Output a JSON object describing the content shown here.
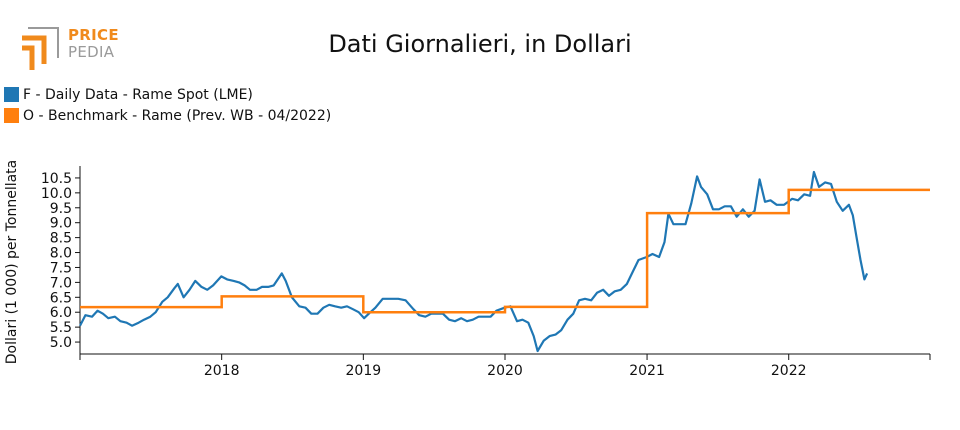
{
  "logo": {
    "word1": "PRICE",
    "word2": "PEDIA",
    "colors": {
      "orange": "#f08a1c",
      "gray": "#9a9a9a"
    }
  },
  "chart_data": {
    "type": "line",
    "title": "Dati Giornalieri, in Dollari",
    "ylabel": "Dollari (1 000) per Tonnellata",
    "xlabel": "",
    "ylim": [
      4.6,
      10.9
    ],
    "xlim": [
      "2017-01-01",
      "2022-12-31"
    ],
    "x_ticks": [
      "2018",
      "2019",
      "2020",
      "2021",
      "2022"
    ],
    "y_ticks": [
      "5.0",
      "5.5",
      "6.0",
      "6.5",
      "7.0",
      "7.5",
      "8.0",
      "8.5",
      "9.0",
      "9.5",
      "10.0",
      "10.5"
    ],
    "grid": false,
    "legend_position": "top-left",
    "series": [
      {
        "name": "F - Daily Data - Rame Spot (LME)",
        "color": "#1f77b4",
        "points": [
          [
            "2017-01-01",
            5.55
          ],
          [
            "2017-01-15",
            5.9
          ],
          [
            "2017-02-01",
            5.85
          ],
          [
            "2017-02-15",
            6.05
          ],
          [
            "2017-03-01",
            5.95
          ],
          [
            "2017-03-15",
            5.8
          ],
          [
            "2017-04-01",
            5.85
          ],
          [
            "2017-04-15",
            5.7
          ],
          [
            "2017-05-01",
            5.65
          ],
          [
            "2017-05-15",
            5.55
          ],
          [
            "2017-06-01",
            5.65
          ],
          [
            "2017-06-15",
            5.75
          ],
          [
            "2017-07-01",
            5.85
          ],
          [
            "2017-07-15",
            6.0
          ],
          [
            "2017-08-01",
            6.35
          ],
          [
            "2017-08-15",
            6.5
          ],
          [
            "2017-09-01",
            6.8
          ],
          [
            "2017-09-10",
            6.95
          ],
          [
            "2017-09-25",
            6.5
          ],
          [
            "2017-10-10",
            6.75
          ],
          [
            "2017-10-25",
            7.05
          ],
          [
            "2017-11-10",
            6.85
          ],
          [
            "2017-11-25",
            6.75
          ],
          [
            "2017-12-10",
            6.9
          ],
          [
            "2017-12-31",
            7.2
          ],
          [
            "2018-01-15",
            7.1
          ],
          [
            "2018-02-01",
            7.05
          ],
          [
            "2018-02-15",
            7.0
          ],
          [
            "2018-03-01",
            6.9
          ],
          [
            "2018-03-15",
            6.75
          ],
          [
            "2018-04-01",
            6.75
          ],
          [
            "2018-04-15",
            6.85
          ],
          [
            "2018-05-01",
            6.85
          ],
          [
            "2018-05-15",
            6.9
          ],
          [
            "2018-06-05",
            7.3
          ],
          [
            "2018-06-15",
            7.05
          ],
          [
            "2018-07-01",
            6.5
          ],
          [
            "2018-07-20",
            6.2
          ],
          [
            "2018-08-05",
            6.15
          ],
          [
            "2018-08-20",
            5.95
          ],
          [
            "2018-09-05",
            5.95
          ],
          [
            "2018-09-20",
            6.15
          ],
          [
            "2018-10-05",
            6.25
          ],
          [
            "2018-10-20",
            6.2
          ],
          [
            "2018-11-05",
            6.15
          ],
          [
            "2018-11-20",
            6.2
          ],
          [
            "2018-12-05",
            6.1
          ],
          [
            "2018-12-20",
            6.0
          ],
          [
            "2019-01-03",
            5.8
          ],
          [
            "2019-01-15",
            5.95
          ],
          [
            "2019-02-01",
            6.15
          ],
          [
            "2019-02-20",
            6.45
          ],
          [
            "2019-03-10",
            6.45
          ],
          [
            "2019-04-01",
            6.45
          ],
          [
            "2019-04-20",
            6.4
          ],
          [
            "2019-05-10",
            6.1
          ],
          [
            "2019-05-25",
            5.9
          ],
          [
            "2019-06-10",
            5.85
          ],
          [
            "2019-06-25",
            5.95
          ],
          [
            "2019-07-10",
            5.95
          ],
          [
            "2019-07-25",
            5.95
          ],
          [
            "2019-08-10",
            5.75
          ],
          [
            "2019-08-25",
            5.7
          ],
          [
            "2019-09-10",
            5.8
          ],
          [
            "2019-09-25",
            5.7
          ],
          [
            "2019-10-10",
            5.75
          ],
          [
            "2019-10-25",
            5.85
          ],
          [
            "2019-11-10",
            5.85
          ],
          [
            "2019-11-25",
            5.85
          ],
          [
            "2019-12-10",
            6.05
          ],
          [
            "2019-12-31",
            6.15
          ],
          [
            "2020-01-15",
            6.2
          ],
          [
            "2020-02-01",
            5.7
          ],
          [
            "2020-02-15",
            5.75
          ],
          [
            "2020-03-01",
            5.65
          ],
          [
            "2020-03-15",
            5.2
          ],
          [
            "2020-03-25",
            4.7
          ],
          [
            "2020-04-10",
            5.05
          ],
          [
            "2020-04-25",
            5.2
          ],
          [
            "2020-05-10",
            5.25
          ],
          [
            "2020-05-25",
            5.4
          ],
          [
            "2020-06-10",
            5.75
          ],
          [
            "2020-06-25",
            5.95
          ],
          [
            "2020-07-10",
            6.4
          ],
          [
            "2020-07-25",
            6.45
          ],
          [
            "2020-08-10",
            6.4
          ],
          [
            "2020-08-25",
            6.65
          ],
          [
            "2020-09-10",
            6.75
          ],
          [
            "2020-09-25",
            6.55
          ],
          [
            "2020-10-10",
            6.7
          ],
          [
            "2020-10-25",
            6.75
          ],
          [
            "2020-11-10",
            6.95
          ],
          [
            "2020-11-25",
            7.35
          ],
          [
            "2020-12-10",
            7.75
          ],
          [
            "2020-12-31",
            7.85
          ],
          [
            "2021-01-15",
            7.95
          ],
          [
            "2021-02-01",
            7.85
          ],
          [
            "2021-02-15",
            8.35
          ],
          [
            "2021-02-25",
            9.3
          ],
          [
            "2021-03-10",
            8.95
          ],
          [
            "2021-03-25",
            8.95
          ],
          [
            "2021-04-10",
            8.95
          ],
          [
            "2021-04-25",
            9.65
          ],
          [
            "2021-05-10",
            10.55
          ],
          [
            "2021-05-20",
            10.2
          ],
          [
            "2021-06-05",
            9.95
          ],
          [
            "2021-06-20",
            9.45
          ],
          [
            "2021-07-05",
            9.45
          ],
          [
            "2021-07-20",
            9.55
          ],
          [
            "2021-08-05",
            9.55
          ],
          [
            "2021-08-20",
            9.2
          ],
          [
            "2021-09-05",
            9.45
          ],
          [
            "2021-09-20",
            9.2
          ],
          [
            "2021-10-05",
            9.4
          ],
          [
            "2021-10-18",
            10.45
          ],
          [
            "2021-11-01",
            9.7
          ],
          [
            "2021-11-15",
            9.75
          ],
          [
            "2021-12-01",
            9.6
          ],
          [
            "2021-12-20",
            9.6
          ],
          [
            "2022-01-10",
            9.8
          ],
          [
            "2022-01-25",
            9.75
          ],
          [
            "2022-02-10",
            9.95
          ],
          [
            "2022-02-25",
            9.9
          ],
          [
            "2022-03-07",
            10.7
          ],
          [
            "2022-03-20",
            10.2
          ],
          [
            "2022-04-05",
            10.35
          ],
          [
            "2022-04-20",
            10.3
          ],
          [
            "2022-05-05",
            9.7
          ],
          [
            "2022-05-20",
            9.4
          ],
          [
            "2022-06-05",
            9.6
          ],
          [
            "2022-06-15",
            9.25
          ],
          [
            "2022-06-25",
            8.5
          ],
          [
            "2022-07-05",
            7.75
          ],
          [
            "2022-07-15",
            7.1
          ],
          [
            "2022-07-22",
            7.3
          ]
        ]
      },
      {
        "name": "O - Benchmark - Rame (Prev. WB - 04/2022)",
        "color": "#ff7f0e",
        "step": true,
        "points": [
          [
            "2017-01-01",
            6.17
          ],
          [
            "2018-01-01",
            6.53
          ],
          [
            "2019-01-01",
            6.0
          ],
          [
            "2020-01-01",
            6.18
          ],
          [
            "2021-01-01",
            9.32
          ],
          [
            "2022-01-01",
            10.1
          ],
          [
            "2022-12-31",
            10.1
          ]
        ]
      }
    ]
  }
}
